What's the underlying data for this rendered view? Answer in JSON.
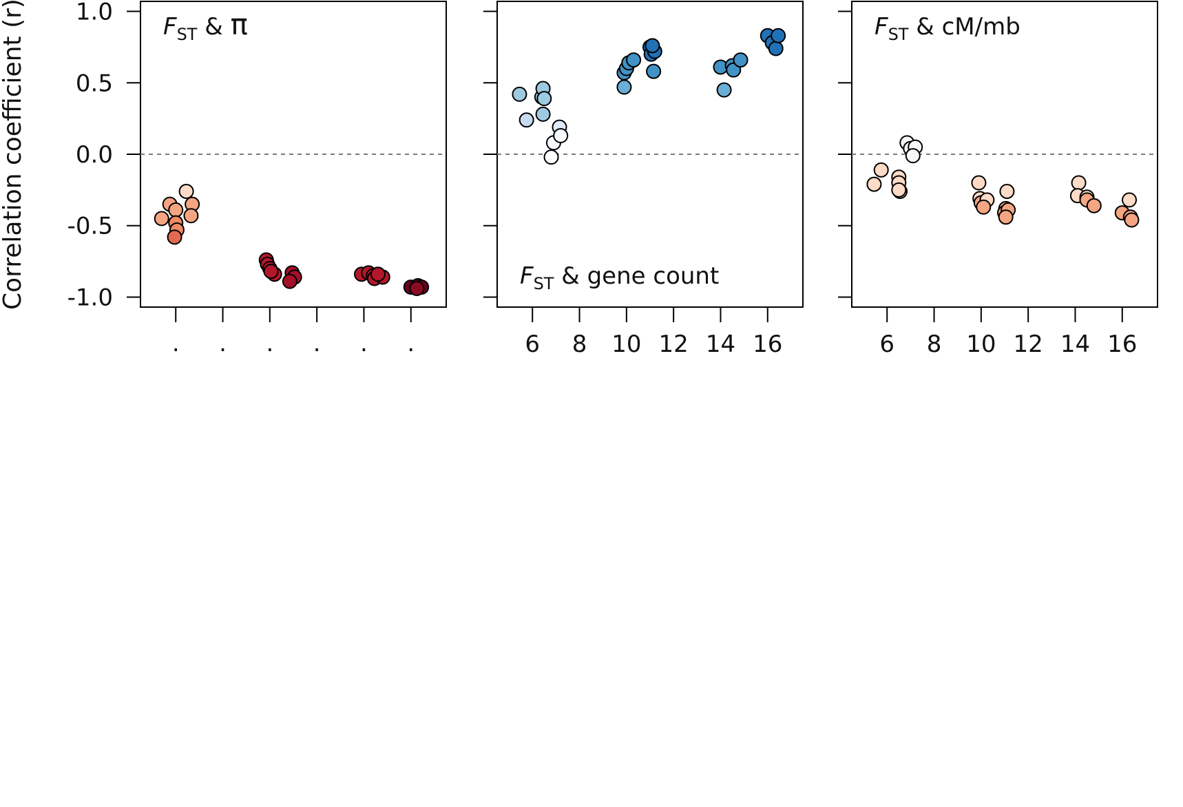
{
  "chart_data": [
    {
      "type": "scatter",
      "panel_label": {
        "italic": "F",
        "sub": "ST",
        "rest": " & ",
        "symbol": "π"
      },
      "label_position": "top-left",
      "ylabel": "Correlation coefficient (r)",
      "ylim": [
        -1.07,
        1.07
      ],
      "yticks": [
        "1.0",
        "0.5",
        "0.0",
        "-0.5",
        "-1.0"
      ],
      "xlim": [
        4.5,
        17.5
      ],
      "xtick_values": [
        6,
        8,
        10,
        12,
        14,
        16
      ],
      "xtick_labels": [
        ".",
        ".",
        ".",
        ".",
        ".",
        "."
      ],
      "reference_line_y": 0,
      "points": [
        {
          "x": 5.4,
          "y": -0.45,
          "color": "#f4a582"
        },
        {
          "x": 5.75,
          "y": -0.35,
          "color": "#f4a582"
        },
        {
          "x": 6.0,
          "y": -0.39,
          "color": "#f4a582"
        },
        {
          "x": 6.45,
          "y": -0.26,
          "color": "#fddbc7"
        },
        {
          "x": 6.7,
          "y": -0.35,
          "color": "#f4a582"
        },
        {
          "x": 6.65,
          "y": -0.43,
          "color": "#f4a582"
        },
        {
          "x": 6.0,
          "y": -0.48,
          "color": "#ef8a62"
        },
        {
          "x": 6.05,
          "y": -0.53,
          "color": "#ef8a62"
        },
        {
          "x": 5.95,
          "y": -0.58,
          "color": "#e26952"
        },
        {
          "x": 9.85,
          "y": -0.74,
          "color": "#b2182b"
        },
        {
          "x": 9.9,
          "y": -0.77,
          "color": "#b2182b"
        },
        {
          "x": 10.0,
          "y": -0.8,
          "color": "#b2182b"
        },
        {
          "x": 10.2,
          "y": -0.84,
          "color": "#b2182b"
        },
        {
          "x": 10.05,
          "y": -0.82,
          "color": "#b2182b"
        },
        {
          "x": 10.95,
          "y": -0.83,
          "color": "#a50f28"
        },
        {
          "x": 11.05,
          "y": -0.86,
          "color": "#a50f28"
        },
        {
          "x": 10.85,
          "y": -0.89,
          "color": "#a50f28"
        },
        {
          "x": 13.9,
          "y": -0.84,
          "color": "#b2182b"
        },
        {
          "x": 14.2,
          "y": -0.83,
          "color": "#b2182b"
        },
        {
          "x": 14.4,
          "y": -0.85,
          "color": "#b2182b"
        },
        {
          "x": 14.45,
          "y": -0.87,
          "color": "#b2182b"
        },
        {
          "x": 14.8,
          "y": -0.86,
          "color": "#b2182b"
        },
        {
          "x": 14.6,
          "y": -0.84,
          "color": "#b2182b"
        },
        {
          "x": 16.0,
          "y": -0.93,
          "color": "#67001f"
        },
        {
          "x": 16.3,
          "y": -0.92,
          "color": "#67001f"
        },
        {
          "x": 16.45,
          "y": -0.93,
          "color": "#67001f"
        },
        {
          "x": 16.25,
          "y": -0.94,
          "color": "#8b0a23"
        }
      ]
    },
    {
      "type": "scatter",
      "panel_label": {
        "italic": "F",
        "sub": "ST",
        "rest": " & gene count",
        "symbol": ""
      },
      "label_position": "bottom-left",
      "ylim": [
        -1.07,
        1.07
      ],
      "xlim": [
        4.5,
        17.5
      ],
      "xtick_values": [
        6,
        8,
        10,
        12,
        14,
        16
      ],
      "xtick_labels": [
        "6",
        "8",
        "10",
        "12",
        "14",
        "16"
      ],
      "reference_line_y": 0,
      "points": [
        {
          "x": 5.45,
          "y": 0.42,
          "color": "#9ecae1"
        },
        {
          "x": 5.75,
          "y": 0.24,
          "color": "#c6dbef"
        },
        {
          "x": 6.4,
          "y": 0.4,
          "color": "#9ecae1"
        },
        {
          "x": 6.45,
          "y": 0.46,
          "color": "#9ecae1"
        },
        {
          "x": 6.5,
          "y": 0.39,
          "color": "#9ecae1"
        },
        {
          "x": 6.45,
          "y": 0.28,
          "color": "#9ecae1"
        },
        {
          "x": 7.15,
          "y": 0.19,
          "color": "#deebf7"
        },
        {
          "x": 6.9,
          "y": 0.08,
          "color": "#f7fbff"
        },
        {
          "x": 7.2,
          "y": 0.13,
          "color": "#f7fbff"
        },
        {
          "x": 6.8,
          "y": -0.02,
          "color": "#ffffff"
        },
        {
          "x": 9.9,
          "y": 0.47,
          "color": "#6baed6"
        },
        {
          "x": 9.9,
          "y": 0.57,
          "color": "#4292c6"
        },
        {
          "x": 10.0,
          "y": 0.6,
          "color": "#4292c6"
        },
        {
          "x": 10.1,
          "y": 0.64,
          "color": "#4292c6"
        },
        {
          "x": 10.3,
          "y": 0.66,
          "color": "#4292c6"
        },
        {
          "x": 11.0,
          "y": 0.75,
          "color": "#2171b5"
        },
        {
          "x": 11.05,
          "y": 0.7,
          "color": "#2171b5"
        },
        {
          "x": 11.2,
          "y": 0.72,
          "color": "#2171b5"
        },
        {
          "x": 11.1,
          "y": 0.76,
          "color": "#2171b5"
        },
        {
          "x": 11.15,
          "y": 0.58,
          "color": "#4292c6"
        },
        {
          "x": 14.0,
          "y": 0.61,
          "color": "#4292c6"
        },
        {
          "x": 14.15,
          "y": 0.45,
          "color": "#6baed6"
        },
        {
          "x": 14.5,
          "y": 0.62,
          "color": "#4292c6"
        },
        {
          "x": 14.55,
          "y": 0.59,
          "color": "#4292c6"
        },
        {
          "x": 14.85,
          "y": 0.66,
          "color": "#4292c6"
        },
        {
          "x": 16.0,
          "y": 0.83,
          "color": "#2171b5"
        },
        {
          "x": 16.2,
          "y": 0.78,
          "color": "#2171b5"
        },
        {
          "x": 16.35,
          "y": 0.74,
          "color": "#2171b5"
        },
        {
          "x": 16.45,
          "y": 0.83,
          "color": "#2171b5"
        }
      ]
    },
    {
      "type": "scatter",
      "panel_label": {
        "italic": "F",
        "sub": "ST",
        "rest": " & cM/mb",
        "symbol": ""
      },
      "label_position": "top-left",
      "ylim": [
        -1.07,
        1.07
      ],
      "xlim": [
        4.5,
        17.5
      ],
      "xtick_values": [
        6,
        8,
        10,
        12,
        14,
        16
      ],
      "xtick_labels": [
        "6",
        "8",
        "10",
        "12",
        "14",
        "16"
      ],
      "reference_line_y": 0,
      "points": [
        {
          "x": 5.45,
          "y": -0.21,
          "color": "#fddbc7"
        },
        {
          "x": 5.75,
          "y": -0.11,
          "color": "#fddbc7"
        },
        {
          "x": 6.5,
          "y": -0.16,
          "color": "#fddbc7"
        },
        {
          "x": 6.5,
          "y": -0.2,
          "color": "#fddbc7"
        },
        {
          "x": 6.55,
          "y": -0.26,
          "color": "#fddbc7"
        },
        {
          "x": 6.5,
          "y": -0.25,
          "color": "#fddbc7"
        },
        {
          "x": 6.85,
          "y": 0.08,
          "color": "#f7f7f7"
        },
        {
          "x": 7.0,
          "y": 0.04,
          "color": "#f7f7f7"
        },
        {
          "x": 7.2,
          "y": 0.05,
          "color": "#f7f7f7"
        },
        {
          "x": 7.1,
          "y": -0.01,
          "color": "#f7f7f7"
        },
        {
          "x": 9.9,
          "y": -0.2,
          "color": "#fddbc7"
        },
        {
          "x": 9.95,
          "y": -0.31,
          "color": "#fddbc7"
        },
        {
          "x": 10.0,
          "y": -0.34,
          "color": "#f4a582"
        },
        {
          "x": 10.25,
          "y": -0.32,
          "color": "#fddbc7"
        },
        {
          "x": 10.1,
          "y": -0.37,
          "color": "#f4a582"
        },
        {
          "x": 11.1,
          "y": -0.26,
          "color": "#fddbc7"
        },
        {
          "x": 11.05,
          "y": -0.38,
          "color": "#f4a582"
        },
        {
          "x": 11.0,
          "y": -0.41,
          "color": "#f4a582"
        },
        {
          "x": 11.15,
          "y": -0.39,
          "color": "#f4a582"
        },
        {
          "x": 11.05,
          "y": -0.44,
          "color": "#f4a582"
        },
        {
          "x": 14.15,
          "y": -0.2,
          "color": "#fddbc7"
        },
        {
          "x": 14.1,
          "y": -0.29,
          "color": "#fddbc7"
        },
        {
          "x": 14.5,
          "y": -0.3,
          "color": "#fddbc7"
        },
        {
          "x": 14.5,
          "y": -0.32,
          "color": "#f4a582"
        },
        {
          "x": 14.8,
          "y": -0.36,
          "color": "#f4a582"
        },
        {
          "x": 16.0,
          "y": -0.41,
          "color": "#f4a582"
        },
        {
          "x": 16.3,
          "y": -0.32,
          "color": "#fddbc7"
        },
        {
          "x": 16.35,
          "y": -0.44,
          "color": "#f4a582"
        },
        {
          "x": 16.4,
          "y": -0.46,
          "color": "#f4a582"
        }
      ]
    }
  ]
}
